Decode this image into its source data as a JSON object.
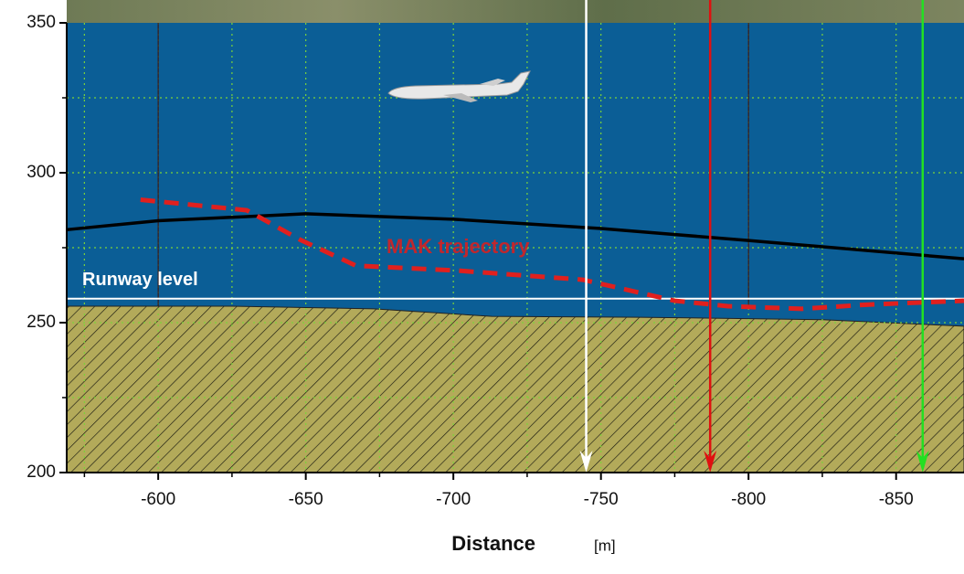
{
  "chart_data": {
    "type": "line",
    "x_label": "Distance",
    "x_unit": "[m]",
    "xlim": [
      -569,
      -873
    ],
    "xticks": [
      -600,
      -650,
      -700,
      -750,
      -800,
      -850
    ],
    "x_minor_ticks": [
      -575,
      -625,
      -675,
      -725,
      -775,
      -825,
      -875
    ],
    "ylim": [
      200,
      350
    ],
    "yticks": [
      200,
      250,
      300,
      350
    ],
    "y_minor_ticks": [
      225,
      275,
      325
    ],
    "grid": true,
    "reference_lines": [
      -600,
      -800
    ],
    "terrain": {
      "color": "#b3aa5a",
      "x": [
        -569,
        -624,
        -673,
        -713,
        -763,
        -825,
        -873
      ],
      "values": [
        255.5,
        255.5,
        254.6,
        252.1,
        251.8,
        251,
        248.8
      ]
    },
    "runway": {
      "text": "Runway level",
      "value": 258,
      "color": "#ffffff"
    },
    "series": [
      {
        "color": "#000000",
        "style": "solid",
        "x": [
          -569,
          -600,
          -650,
          -700,
          -750,
          -800,
          -873
        ],
        "values": [
          281,
          284,
          286.3,
          284.5,
          281.4,
          277.4,
          271.3
        ]
      },
      {
        "name": "MAK trajectory",
        "color": "#e0201e",
        "style": "dashed",
        "x": [
          -594,
          -630,
          -648,
          -667,
          -701,
          -744,
          -775,
          -793,
          -818,
          -840,
          -873
        ],
        "values": [
          291,
          287.5,
          277.7,
          269,
          267.4,
          264.3,
          257.3,
          255.5,
          254.6,
          256,
          257.3
        ]
      }
    ],
    "markers": [
      {
        "x": -745,
        "color": "#ffffff"
      },
      {
        "x": -787,
        "color": "#e01010"
      },
      {
        "x": -859,
        "color": "#22e022"
      }
    ]
  }
}
